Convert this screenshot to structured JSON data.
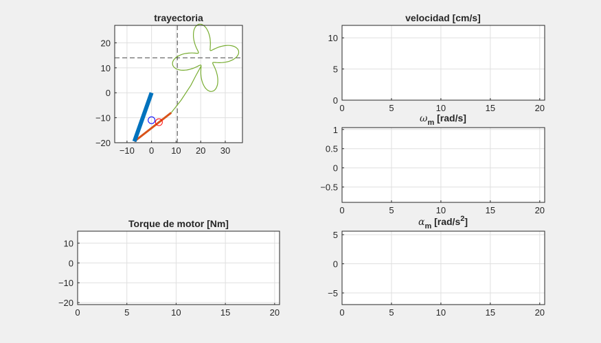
{
  "chart_data": [
    {
      "type": "line",
      "title": "trayectoria",
      "xlim": [
        -15,
        37
      ],
      "ylim": [
        -20,
        27
      ],
      "xticks": [
        -10,
        0,
        10,
        20,
        30
      ],
      "yticks": [
        -20,
        -10,
        0,
        10,
        20
      ],
      "grid": true,
      "reference_lines": {
        "x": 10.5,
        "y": 14
      },
      "link_1": {
        "from": [
          0,
          0
        ],
        "to": [
          -7,
          -19.5
        ],
        "color": "#0072bd"
      },
      "link_2": {
        "from": [
          -7,
          -19.5
        ],
        "to": [
          8,
          -8
        ],
        "color": "#d95319"
      },
      "joint_markers": [
        {
          "x": 0,
          "y": -11,
          "color": "#0000ff"
        },
        {
          "x": 3,
          "y": -11.8,
          "color": "#ff0000"
        }
      ],
      "path": {
        "color": "#77ac30",
        "lead_in": [
          [
            8,
            -8
          ],
          [
            12,
            -3
          ],
          [
            16,
            3
          ],
          [
            18,
            6.8
          ]
        ],
        "center": [
          22,
          14
        ],
        "petals": 4,
        "r_base": 8.6,
        "r_amp": 5.1,
        "phase_deg": 45
      }
    },
    {
      "type": "line",
      "title": "velocidad [cm/s]",
      "xlim": [
        0,
        20.5
      ],
      "ylim": [
        0,
        12
      ],
      "xticks": [
        0,
        5,
        10,
        15,
        20
      ],
      "yticks": [
        0,
        5,
        10
      ],
      "grid": true,
      "series": []
    },
    {
      "type": "line",
      "title": "ω",
      "title_sub": "m",
      "title_rest": " [rad/s]",
      "xlim": [
        0,
        20.5
      ],
      "ylim": [
        -0.9,
        1.05
      ],
      "xticks": [
        0,
        5,
        10,
        15,
        20
      ],
      "yticks": [
        -0.5,
        0,
        0.5,
        1
      ],
      "grid": true,
      "series": []
    },
    {
      "type": "line",
      "title": "Torque de motor [Nm]",
      "xlim": [
        0,
        20.5
      ],
      "ylim": [
        -21,
        16
      ],
      "xticks": [
        0,
        5,
        10,
        15,
        20
      ],
      "yticks": [
        -20,
        -10,
        0,
        10
      ],
      "grid": true,
      "series": []
    },
    {
      "type": "line",
      "title": "α",
      "title_sub": "m",
      "title_rest": " [rad/s",
      "title_sup": "2",
      "title_end": "]",
      "xlim": [
        0,
        20.5
      ],
      "ylim": [
        -7,
        5.6
      ],
      "xticks": [
        0,
        5,
        10,
        15,
        20
      ],
      "yticks": [
        -5,
        0,
        5
      ],
      "grid": true,
      "series": []
    }
  ]
}
